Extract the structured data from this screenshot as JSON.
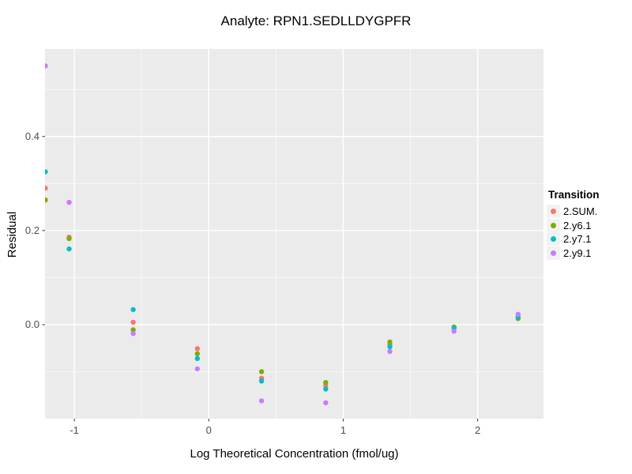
{
  "chart_data": {
    "type": "scatter",
    "title": "Analyte: RPN1.SEDLLDYGPFR",
    "xlabel": "Log Theoretical Concentration (fmol/ug)",
    "ylabel": "Residual",
    "legend_title": "Transition",
    "legend_position": "right",
    "x": [
      -1.215,
      -1.039,
      -0.562,
      -0.085,
      0.393,
      0.87,
      1.347,
      1.824,
      2.301
    ],
    "series": [
      {
        "name": "2.SUM.",
        "color": "#F8766D",
        "values": [
          0.29,
          0.186,
          0.005,
          -0.051,
          -0.114,
          -0.13,
          -0.042,
          -0.007,
          0.015
        ]
      },
      {
        "name": "2.y6.1",
        "color": "#7CAE00",
        "values": [
          0.265,
          0.183,
          -0.011,
          -0.062,
          -0.1,
          -0.123,
          -0.037,
          -0.005,
          0.013
        ]
      },
      {
        "name": "2.y7.1",
        "color": "#00BFC4",
        "values": [
          0.325,
          0.161,
          0.032,
          -0.072,
          -0.12,
          -0.137,
          -0.047,
          -0.007,
          0.016
        ]
      },
      {
        "name": "2.y9.1",
        "color": "#C77CFF",
        "values": [
          0.55,
          0.26,
          -0.019,
          -0.094,
          -0.162,
          -0.166,
          -0.057,
          -0.014,
          0.022
        ]
      }
    ],
    "x_range": [
      -1.218,
      2.49
    ],
    "y_range": [
      -0.2,
      0.586
    ],
    "x_ticks": {
      "major": [
        -1,
        0,
        1,
        2
      ],
      "labels": [
        "-1",
        "0",
        "1",
        "2"
      ],
      "minor": [
        -0.5,
        0.5,
        1.5
      ]
    },
    "y_ticks": {
      "major": [
        0.0,
        0.2,
        0.4
      ],
      "labels": [
        "0.0",
        "0.2",
        "0.4"
      ],
      "minor": [
        -0.1,
        0.1,
        0.3,
        0.5
      ]
    },
    "grid": true,
    "panel_bg": "#EBEBEB",
    "grid_major_color": "#FFFFFF",
    "grid_minor_color": "#FFFFFF",
    "tick_mark_color": "#333333",
    "tick_label_color": "#4D4D4D",
    "legend_key_bg": "#F2F2F2",
    "point_radius": 3.2
  }
}
